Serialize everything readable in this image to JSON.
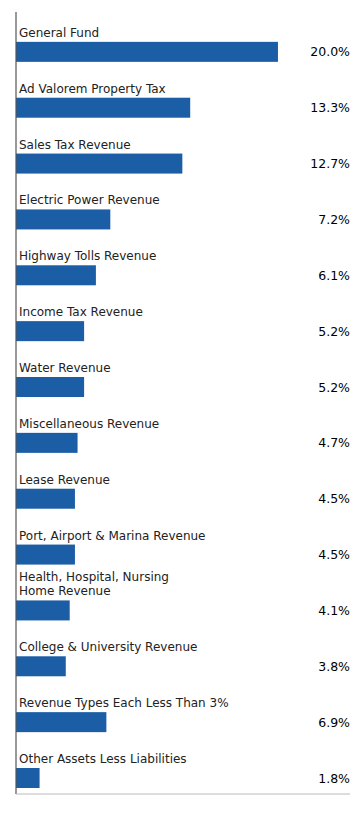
{
  "chart_data": {
    "type": "bar",
    "orientation": "horizontal",
    "categories": [
      "General Fund",
      "Ad Valorem Property Tax",
      "Sales Tax Revenue",
      "Electric Power Revenue",
      "Highway Tolls Revenue",
      "Income Tax Revenue",
      "Water Revenue",
      "Miscellaneous Revenue",
      "Lease Revenue",
      "Port, Airport & Marina Revenue",
      "Health, Hospital, Nursing\nHome Revenue",
      "College & University Revenue",
      "Revenue Types Each Less Than 3%",
      "Other Assets Less Liabilities"
    ],
    "values": [
      20.0,
      13.3,
      12.7,
      7.2,
      6.1,
      5.2,
      5.2,
      4.7,
      4.5,
      4.5,
      4.1,
      3.8,
      6.9,
      1.8
    ],
    "value_labels": [
      "20.0%",
      "13.3%",
      "12.7%",
      "7.2%",
      "6.1%",
      "5.2%",
      "5.2%",
      "4.7%",
      "4.5%",
      "4.5%",
      "4.1%",
      "3.8%",
      "6.9%",
      "1.8%"
    ],
    "data_labels": true,
    "color": "#1B5EA6",
    "xlim": [
      0,
      25.5
    ],
    "tick_labels": false,
    "grid": false
  }
}
